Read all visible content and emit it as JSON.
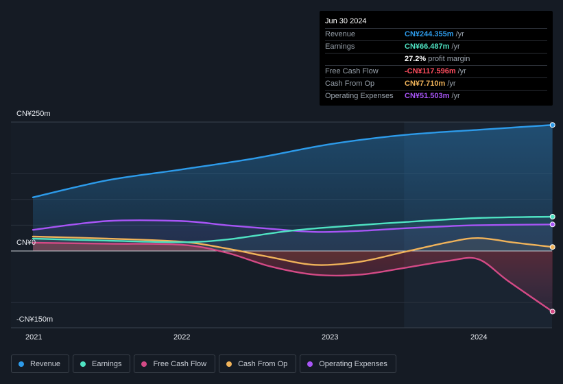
{
  "tooltip": {
    "date": "Jun 30 2024",
    "rows": [
      {
        "label": "Revenue",
        "value": "CN¥244.355m",
        "unit": "/yr",
        "color": "#2d9bea"
      },
      {
        "label": "Earnings",
        "value": "CN¥66.487m",
        "unit": "/yr",
        "color": "#4fe3c3"
      },
      {
        "label": "",
        "value": "27.2%",
        "unit": "profit margin",
        "color": "#ffffff"
      },
      {
        "label": "Free Cash Flow",
        "value": "-CN¥117.596m",
        "unit": "/yr",
        "color": "#ff4d5e"
      },
      {
        "label": "Cash From Op",
        "value": "CN¥7.710m",
        "unit": "/yr",
        "color": "#f0b35a"
      },
      {
        "label": "Operating Expenses",
        "value": "CN¥51.503m",
        "unit": "/yr",
        "color": "#a855f7"
      }
    ]
  },
  "chart_data": {
    "type": "area",
    "title": "",
    "y_tick_labels": {
      "top": "CN¥250m",
      "zero": "CN¥0",
      "bottom": "-CN¥150m"
    },
    "ylim": [
      -150,
      250
    ],
    "xlim": [
      2020.85,
      2024.5
    ],
    "x_tick_labels": [
      "2021",
      "2022",
      "2023",
      "2024"
    ],
    "x_ticks": [
      2021,
      2022,
      2023,
      2024
    ],
    "highlight_start": 2023.5,
    "series": [
      {
        "name": "Revenue",
        "color": "#2d9bea",
        "x": [
          2021.0,
          2021.5,
          2022.0,
          2022.5,
          2023.0,
          2023.5,
          2024.0,
          2024.5
        ],
        "values": [
          104,
          137,
          158,
          180,
          207,
          225,
          235,
          244.355
        ]
      },
      {
        "name": "Earnings",
        "color": "#4fe3c3",
        "x": [
          2021.0,
          2021.5,
          2022.0,
          2022.3,
          2022.7,
          2023.0,
          2023.5,
          2024.0,
          2024.5
        ],
        "values": [
          24,
          20,
          17,
          22,
          38,
          46,
          56,
          64,
          66.487
        ]
      },
      {
        "name": "Free Cash Flow",
        "color": "#d44a86",
        "x": [
          2021.0,
          2021.5,
          2022.0,
          2022.3,
          2022.6,
          2022.9,
          2023.2,
          2023.5,
          2023.8,
          2024.0,
          2024.2,
          2024.5
        ],
        "values": [
          16,
          14,
          12,
          -3,
          -30,
          -46,
          -46,
          -33,
          -19,
          -16,
          -58,
          -117.596
        ]
      },
      {
        "name": "Cash From Op",
        "color": "#f0b35a",
        "x": [
          2021.0,
          2021.5,
          2022.0,
          2022.3,
          2022.6,
          2022.9,
          2023.2,
          2023.5,
          2023.8,
          2024.0,
          2024.25,
          2024.5
        ],
        "values": [
          28,
          24,
          18,
          5,
          -12,
          -27,
          -21,
          -2,
          17,
          25,
          16,
          7.71
        ]
      },
      {
        "name": "Operating Expenses",
        "color": "#a855f7",
        "x": [
          2021.0,
          2021.5,
          2022.0,
          2022.3,
          2022.6,
          2022.9,
          2023.2,
          2023.5,
          2023.8,
          2024.0,
          2024.5
        ],
        "values": [
          41,
          58,
          58,
          50,
          43,
          37,
          39,
          44,
          48,
          50,
          51.503
        ]
      }
    ]
  },
  "legend": [
    {
      "label": "Revenue",
      "color": "#2d9bea"
    },
    {
      "label": "Earnings",
      "color": "#4fe3c3"
    },
    {
      "label": "Free Cash Flow",
      "color": "#d44a86"
    },
    {
      "label": "Cash From Op",
      "color": "#f0b35a"
    },
    {
      "label": "Operating Expenses",
      "color": "#a855f7"
    }
  ]
}
